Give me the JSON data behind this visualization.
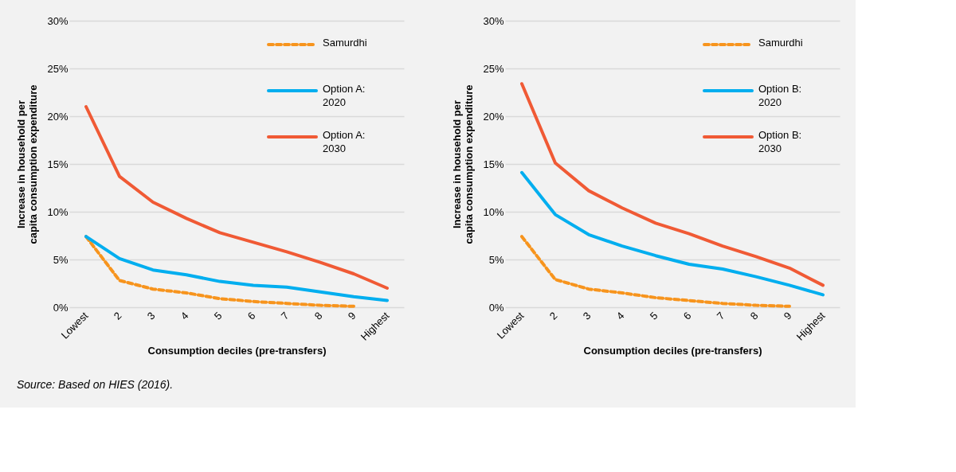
{
  "chart_data": [
    {
      "type": "line",
      "categories": [
        "Lowest",
        "2",
        "3",
        "4",
        "5",
        "6",
        "7",
        "8",
        "9",
        "Highest"
      ],
      "xlabel": "Consumption deciles (pre-transfers)",
      "ylabel": "Increase in household per capita consumption expenditure",
      "ylim": [
        0,
        30
      ],
      "yticks": [
        {
          "value": 0,
          "label": "0%"
        },
        {
          "value": 5,
          "label": "5%"
        },
        {
          "value": 10,
          "label": "10%"
        },
        {
          "value": 15,
          "label": "15%"
        },
        {
          "value": 20,
          "label": "20%"
        },
        {
          "value": 25,
          "label": "25%"
        },
        {
          "value": 30,
          "label": "30%"
        }
      ],
      "grid": "y",
      "legend": "top right",
      "marker": "none",
      "series": [
        {
          "name": "Samurdhi",
          "color": "#f7941d",
          "line_style": "dashed",
          "values": [
            7.4,
            2.8,
            1.9,
            1.5,
            0.9,
            0.6,
            0.4,
            0.2,
            0.1,
            null
          ]
        },
        {
          "name": "Option A: 2020",
          "color": "#00aeef",
          "line_style": "solid",
          "values": [
            7.4,
            5.1,
            3.9,
            3.4,
            2.7,
            2.3,
            2.1,
            1.6,
            1.1,
            0.7
          ]
        },
        {
          "name": "Option A: 2030",
          "color": "#f05a35",
          "line_style": "solid",
          "values": [
            21.0,
            13.7,
            11.0,
            9.3,
            7.8,
            6.8,
            5.8,
            4.7,
            3.5,
            2.0
          ]
        }
      ],
      "annotations": [
        "Source: Based on HIES (2016)."
      ]
    },
    {
      "type": "line",
      "categories": [
        "Lowest",
        "2",
        "3",
        "4",
        "5",
        "6",
        "7",
        "8",
        "9",
        "Highest"
      ],
      "xlabel": "Consumption deciles (pre-transfers)",
      "ylabel": "Increase in household per capita consumption expenditure",
      "ylim": [
        0,
        30
      ],
      "yticks": [
        {
          "value": 0,
          "label": "0%"
        },
        {
          "value": 5,
          "label": "5%"
        },
        {
          "value": 10,
          "label": "10%"
        },
        {
          "value": 15,
          "label": "15%"
        },
        {
          "value": 20,
          "label": "20%"
        },
        {
          "value": 25,
          "label": "25%"
        },
        {
          "value": 30,
          "label": "30%"
        }
      ],
      "grid": "y",
      "legend": "top right",
      "marker": "none",
      "series": [
        {
          "name": "Samurdhi",
          "color": "#f7941d",
          "line_style": "dashed",
          "values": [
            7.4,
            2.9,
            1.9,
            1.5,
            1.0,
            0.7,
            0.4,
            0.2,
            0.1,
            null
          ]
        },
        {
          "name": "Option B: 2020",
          "color": "#00aeef",
          "line_style": "solid",
          "values": [
            14.1,
            9.7,
            7.6,
            6.4,
            5.4,
            4.5,
            4.0,
            3.2,
            2.3,
            1.3
          ]
        },
        {
          "name": "Option B: 2030",
          "color": "#f05a35",
          "line_style": "solid",
          "values": [
            23.4,
            15.1,
            12.2,
            10.4,
            8.8,
            7.7,
            6.4,
            5.3,
            4.1,
            2.3
          ]
        }
      ]
    }
  ]
}
